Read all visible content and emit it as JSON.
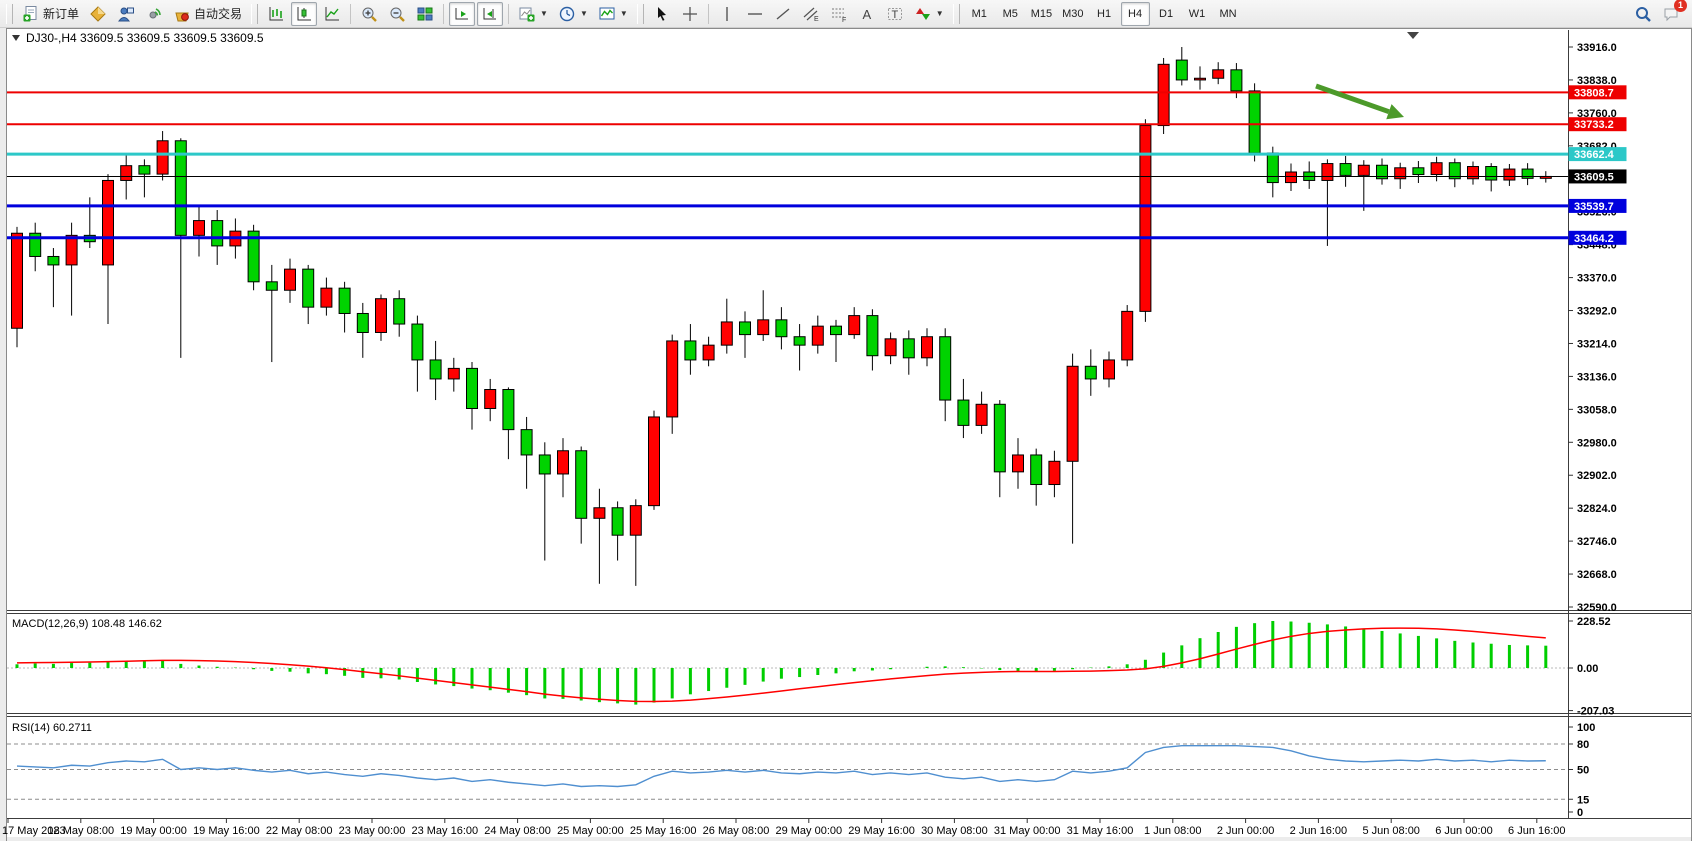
{
  "toolbar": {
    "new_order_label": "新订单",
    "auto_trading_label": "自动交易",
    "timeframes": [
      "M1",
      "M5",
      "M15",
      "M30",
      "H1",
      "H4",
      "D1",
      "W1",
      "MN"
    ],
    "active_timeframe": "H4",
    "notification_count": "1",
    "icon_names": [
      "new-order-icon",
      "gold-diamond-icon",
      "terminal-user-icon",
      "signal-icon",
      "auto-trading-icon",
      "bar-chart-type-icon",
      "candle-chart-type-icon",
      "line-chart-type-icon",
      "zoom-in-icon",
      "zoom-out-icon",
      "tile-windows-icon",
      "auto-scroll-icon",
      "chart-shift-icon",
      "indicators-icon",
      "periods-clock-icon",
      "templates-icon",
      "cursor-icon",
      "crosshair-icon",
      "vertical-line-icon",
      "horizontal-line-icon",
      "trendline-icon",
      "equidistant-channel-icon",
      "fibonacci-icon",
      "text-icon",
      "text-label-icon",
      "arrows-shapes-icon",
      "search-icon",
      "notification-icon"
    ]
  },
  "chart": {
    "info_line": "DJ30-,H4  33609.5 33609.5 33609.5 33609.5",
    "macd_label": "MACD(12,26,9) 108.48 146.62",
    "rsi_label": "RSI(14) 60.2711"
  },
  "price_axis": {
    "ticks": [
      "33916.0",
      "33838.0",
      "33760.0",
      "33682.0",
      "33526.0",
      "33448.0",
      "33370.0",
      "33292.0",
      "33214.0",
      "33136.0",
      "33058.0",
      "32980.0",
      "32902.0",
      "32824.0",
      "32746.0",
      "32668.0",
      "32590.0"
    ]
  },
  "macd_axis": {
    "ticks": [
      "228.52",
      "0.00",
      "-207.03"
    ]
  },
  "rsi_axis": {
    "ticks": [
      "100",
      "80",
      "50",
      "15",
      "0"
    ]
  },
  "time_axis": {
    "labels": [
      "17 May 2023",
      "18 May 08:00",
      "19 May 00:00",
      "19 May 16:00",
      "22 May 08:00",
      "23 May 00:00",
      "23 May 16:00",
      "24 May 08:00",
      "25 May 00:00",
      "25 May 16:00",
      "26 May 08:00",
      "29 May 00:00",
      "29 May 16:00",
      "30 May 08:00",
      "31 May 00:00",
      "31 May 16:00",
      "1 Jun 08:00",
      "2 Jun 00:00",
      "2 Jun 16:00",
      "5 Jun 08:00",
      "6 Jun 00:00",
      "6 Jun 16:00"
    ]
  },
  "chart_data": {
    "type": "candlestick",
    "symbol": "DJ30-",
    "period": "H4",
    "title": "DJ30-,H4",
    "price_range": [
      32590,
      33916
    ],
    "bull_color": "#ff0000",
    "bear_color": "#00d300",
    "color_convention": "chinese-red-up-green-down",
    "candles": [
      [
        33250,
        33490,
        33205,
        33475
      ],
      [
        33475,
        33500,
        33385,
        33420
      ],
      [
        33420,
        33440,
        33300,
        33400
      ],
      [
        33400,
        33500,
        33280,
        33470
      ],
      [
        33470,
        33560,
        33440,
        33455
      ],
      [
        33400,
        33615,
        33260,
        33600
      ],
      [
        33600,
        33665,
        33555,
        33635
      ],
      [
        33635,
        33650,
        33560,
        33615
      ],
      [
        33615,
        33717,
        33600,
        33694
      ],
      [
        33694,
        33700,
        33180,
        33470
      ],
      [
        33470,
        33540,
        33420,
        33505
      ],
      [
        33505,
        33530,
        33400,
        33445
      ],
      [
        33445,
        33510,
        33415,
        33480
      ],
      [
        33480,
        33495,
        33340,
        33360
      ],
      [
        33360,
        33400,
        33170,
        33340
      ],
      [
        33340,
        33415,
        33310,
        33390
      ],
      [
        33390,
        33400,
        33260,
        33300
      ],
      [
        33300,
        33370,
        33280,
        33345
      ],
      [
        33345,
        33360,
        33240,
        33285
      ],
      [
        33285,
        33310,
        33180,
        33240
      ],
      [
        33240,
        33330,
        33220,
        33320
      ],
      [
        33320,
        33340,
        33230,
        33260
      ],
      [
        33260,
        33280,
        33100,
        33175
      ],
      [
        33175,
        33220,
        33080,
        33130
      ],
      [
        33130,
        33180,
        33100,
        33155
      ],
      [
        33155,
        33170,
        33010,
        33060
      ],
      [
        33060,
        33130,
        33030,
        33105
      ],
      [
        33105,
        33110,
        32940,
        33010
      ],
      [
        33010,
        33040,
        32870,
        32950
      ],
      [
        32950,
        32980,
        32700,
        32905
      ],
      [
        32905,
        32990,
        32850,
        32960
      ],
      [
        32960,
        32970,
        32740,
        32800
      ],
      [
        32800,
        32870,
        32645,
        32825
      ],
      [
        32825,
        32840,
        32700,
        32760
      ],
      [
        32760,
        32845,
        32640,
        32830
      ],
      [
        32830,
        33055,
        32820,
        33040
      ],
      [
        33040,
        33235,
        33000,
        33220
      ],
      [
        33220,
        33260,
        33140,
        33175
      ],
      [
        33175,
        33230,
        33160,
        33210
      ],
      [
        33210,
        33320,
        33190,
        33265
      ],
      [
        33265,
        33290,
        33180,
        33235
      ],
      [
        33235,
        33340,
        33220,
        33270
      ],
      [
        33270,
        33300,
        33200,
        33230
      ],
      [
        33230,
        33260,
        33150,
        33210
      ],
      [
        33210,
        33280,
        33190,
        33255
      ],
      [
        33255,
        33270,
        33170,
        33235
      ],
      [
        33235,
        33300,
        33225,
        33280
      ],
      [
        33280,
        33295,
        33150,
        33185
      ],
      [
        33185,
        33240,
        33165,
        33225
      ],
      [
        33225,
        33245,
        33140,
        33180
      ],
      [
        33180,
        33250,
        33160,
        33230
      ],
      [
        33230,
        33250,
        33030,
        33080
      ],
      [
        33080,
        33130,
        32990,
        33020
      ],
      [
        33020,
        33100,
        33000,
        33070
      ],
      [
        33070,
        33080,
        32850,
        32910
      ],
      [
        32910,
        32990,
        32870,
        32950
      ],
      [
        32950,
        32965,
        32830,
        32880
      ],
      [
        32880,
        32960,
        32850,
        32935
      ],
      [
        32935,
        33190,
        32740,
        33160
      ],
      [
        33160,
        33200,
        33090,
        33130
      ],
      [
        33130,
        33195,
        33110,
        33175
      ],
      [
        33175,
        33305,
        33160,
        33290
      ],
      [
        33290,
        33745,
        33265,
        33730
      ],
      [
        33730,
        33890,
        33710,
        33875
      ],
      [
        33885,
        33916,
        33825,
        33838
      ],
      [
        33838,
        33870,
        33815,
        33842
      ],
      [
        33842,
        33880,
        33828,
        33862
      ],
      [
        33862,
        33878,
        33795,
        33812
      ],
      [
        33812,
        33830,
        33645,
        33665
      ],
      [
        33665,
        33680,
        33560,
        33595
      ],
      [
        33595,
        33640,
        33575,
        33620
      ],
      [
        33620,
        33645,
        33580,
        33600
      ],
      [
        33600,
        33650,
        33445,
        33640
      ],
      [
        33640,
        33658,
        33585,
        33612
      ],
      [
        33612,
        33648,
        33528,
        33636
      ],
      [
        33636,
        33652,
        33590,
        33604
      ],
      [
        33604,
        33642,
        33580,
        33630
      ],
      [
        33630,
        33646,
        33594,
        33614
      ],
      [
        33614,
        33656,
        33598,
        33642
      ],
      [
        33642,
        33652,
        33584,
        33604
      ],
      [
        33604,
        33645,
        33590,
        33633
      ],
      [
        33633,
        33641,
        33574,
        33601
      ],
      [
        33601,
        33639,
        33587,
        33627
      ],
      [
        33627,
        33641,
        33589,
        33605
      ],
      [
        33605,
        33622,
        33595,
        33609.5
      ]
    ],
    "hlines": [
      {
        "price": 33808.7,
        "color": "#ee0000",
        "width": 2,
        "label": "33808.7"
      },
      {
        "price": 33733.2,
        "color": "#ee0000",
        "width": 2,
        "label": "33733.2"
      },
      {
        "price": 33662.4,
        "color": "#2cc8c8",
        "width": 3,
        "label": "33662.4"
      },
      {
        "price": 33609.5,
        "color": "#000000",
        "width": 1,
        "label": "33609.5",
        "role": "current-price"
      },
      {
        "price": 33539.7,
        "color": "#0000dd",
        "width": 3,
        "label": "33539.7"
      },
      {
        "price": 33464.2,
        "color": "#0000dd",
        "width": 3,
        "label": "33464.2"
      }
    ],
    "macd": {
      "params": "12,26,9",
      "current_macd": 108.48,
      "current_signal": 146.62,
      "range": [
        -207.03,
        228.52
      ],
      "hist_color": "#00ce00",
      "signal_color": "#ff0000",
      "histogram": [
        18,
        22,
        20,
        24,
        26,
        30,
        34,
        32,
        38,
        20,
        12,
        6,
        2,
        -6,
        -14,
        -18,
        -26,
        -30,
        -38,
        -48,
        -50,
        -56,
        -68,
        -80,
        -88,
        -100,
        -108,
        -120,
        -132,
        -148,
        -150,
        -158,
        -166,
        -172,
        -178,
        -168,
        -148,
        -128,
        -112,
        -96,
        -82,
        -66,
        -52,
        -44,
        -34,
        -26,
        -16,
        -12,
        -6,
        0,
        6,
        8,
        4,
        -2,
        -10,
        -16,
        -18,
        -14,
        -6,
        2,
        8,
        18,
        40,
        75,
        110,
        145,
        175,
        200,
        218,
        228.5,
        226,
        220,
        212,
        202,
        192,
        180,
        168,
        156,
        144,
        132,
        124,
        118,
        112,
        110,
        108.5
      ],
      "signal": [
        25,
        26,
        27,
        28,
        29,
        31,
        33,
        35,
        37,
        37,
        36,
        34,
        31,
        27,
        22,
        16,
        9,
        1,
        -8,
        -18,
        -28,
        -38,
        -49,
        -60,
        -71,
        -82,
        -93,
        -104,
        -115,
        -127,
        -137,
        -145,
        -152,
        -158,
        -162,
        -163,
        -161,
        -156,
        -149,
        -141,
        -132,
        -122,
        -112,
        -101,
        -91,
        -81,
        -71,
        -62,
        -53,
        -45,
        -37,
        -30,
        -25,
        -21,
        -18,
        -17,
        -17,
        -17,
        -16,
        -15,
        -13,
        -10,
        -4,
        8,
        25,
        45,
        68,
        92,
        115,
        136,
        154,
        168,
        178,
        185,
        190,
        193,
        194,
        193,
        190,
        185,
        178,
        170,
        162,
        154,
        146.6
      ]
    },
    "rsi": {
      "period": 14,
      "current": 60.2711,
      "range": [
        0,
        100
      ],
      "levels": [
        80,
        50,
        15
      ],
      "color": "#4f8fd0",
      "values": [
        54,
        53,
        52,
        55,
        54,
        58,
        60,
        59,
        62,
        50,
        52,
        50,
        52,
        49,
        47,
        49,
        45,
        47,
        44,
        42,
        45,
        43,
        40,
        38,
        40,
        36,
        38,
        35,
        33,
        31,
        33,
        30,
        31,
        30,
        32,
        42,
        48,
        46,
        47,
        49,
        47,
        49,
        46,
        45,
        47,
        46,
        48,
        44,
        46,
        44,
        46,
        41,
        39,
        41,
        36,
        38,
        36,
        38,
        48,
        46,
        48,
        52,
        70,
        76,
        78,
        78,
        78,
        78,
        77,
        76,
        72,
        66,
        62,
        60,
        59,
        60,
        61,
        60,
        62,
        60,
        61,
        59,
        61,
        60,
        60.3
      ]
    },
    "annotations": [
      {
        "type": "arrow",
        "color": "#4c9a2a",
        "from": [
          1316,
          86
        ],
        "to": [
          1404,
          117
        ]
      }
    ]
  }
}
